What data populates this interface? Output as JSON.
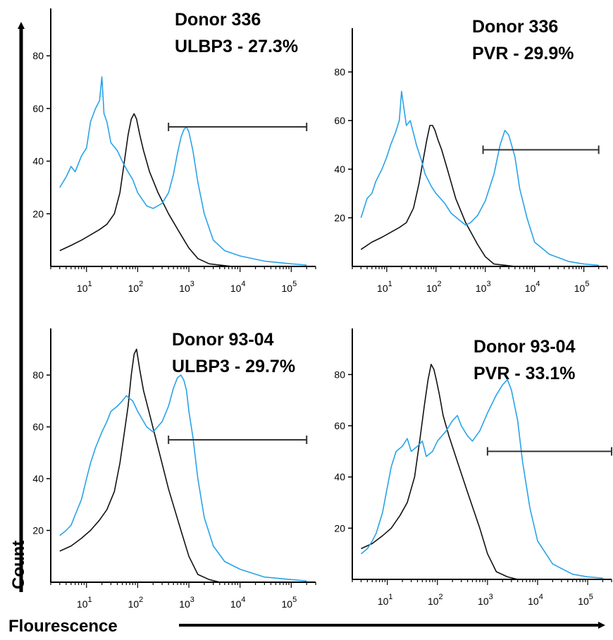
{
  "figure": {
    "y_axis_label": "Count",
    "x_axis_label": "Flourescence"
  },
  "colors": {
    "negative": "#111111",
    "positive": "#29a3e8",
    "axis": "#000000"
  },
  "chart_data": [
    {
      "type": "line",
      "annotation_lines": [
        "Donor 336",
        "ULBP3 - 27.3%"
      ],
      "xscale": "log",
      "xlim": [
        2,
        300000
      ],
      "ylim": [
        0,
        98
      ],
      "yticks": [
        20,
        40,
        60,
        80
      ],
      "xticks": [
        {
          "base": "10",
          "exp": "1",
          "value": 10
        },
        {
          "base": "10",
          "exp": "2",
          "value": 100
        },
        {
          "base": "10",
          "exp": "3",
          "value": 1000
        },
        {
          "base": "10",
          "exp": "4",
          "value": 10000
        },
        {
          "base": "10",
          "exp": "5",
          "value": 100000
        }
      ],
      "gate": {
        "x_start": 400,
        "x_end": 200000,
        "y": 53
      },
      "series": [
        {
          "role": "negative",
          "x": [
            3,
            5,
            8,
            12,
            18,
            25,
            35,
            45,
            55,
            65,
            75,
            85,
            95,
            110,
            130,
            170,
            250,
            400,
            700,
            1000,
            1500,
            2500,
            4000,
            7000
          ],
          "y": [
            6,
            8,
            10,
            12,
            14,
            16,
            20,
            28,
            40,
            50,
            56,
            58,
            56,
            50,
            44,
            36,
            28,
            20,
            12,
            7,
            3,
            1,
            0.5,
            0
          ]
        },
        {
          "role": "positive",
          "x": [
            3,
            4,
            5,
            6,
            8,
            10,
            12,
            15,
            18,
            20,
            22,
            25,
            30,
            40,
            50,
            60,
            80,
            100,
            150,
            200,
            300,
            400,
            500,
            600,
            700,
            800,
            900,
            1000,
            1200,
            1500,
            2000,
            3000,
            5000,
            10000,
            30000,
            100000,
            200000
          ],
          "y": [
            30,
            34,
            38,
            36,
            42,
            45,
            55,
            60,
            63,
            72,
            58,
            55,
            47,
            44,
            40,
            37,
            33,
            28,
            23,
            22,
            24,
            28,
            35,
            43,
            49,
            52,
            53,
            51,
            44,
            32,
            20,
            10,
            6,
            4,
            2,
            1,
            0.5
          ]
        }
      ]
    },
    {
      "type": "line",
      "annotation_lines": [
        "Donor 336",
        "PVR - 29.9%"
      ],
      "xscale": "log",
      "xlim": [
        2,
        300000
      ],
      "ylim": [
        0,
        98
      ],
      "yticks": [
        20,
        40,
        60,
        80
      ],
      "xticks": [
        {
          "base": "10",
          "exp": "1",
          "value": 10
        },
        {
          "base": "10",
          "exp": "2",
          "value": 100
        },
        {
          "base": "10",
          "exp": "3",
          "value": 1000
        },
        {
          "base": "10",
          "exp": "4",
          "value": 10000
        },
        {
          "base": "10",
          "exp": "5",
          "value": 100000
        }
      ],
      "gate": {
        "x_start": 900,
        "x_end": 200000,
        "y": 48
      },
      "series": [
        {
          "role": "negative",
          "x": [
            3,
            5,
            8,
            12,
            18,
            25,
            35,
            45,
            55,
            65,
            75,
            85,
            95,
            110,
            130,
            170,
            250,
            400,
            700,
            1000,
            1500,
            2500,
            4000
          ],
          "y": [
            7,
            10,
            12,
            14,
            16,
            18,
            24,
            34,
            44,
            52,
            58,
            58,
            56,
            52,
            48,
            40,
            28,
            18,
            9,
            4,
            1,
            0.5,
            0
          ]
        },
        {
          "role": "positive",
          "x": [
            3,
            4,
            5,
            6,
            8,
            10,
            12,
            15,
            18,
            20,
            25,
            30,
            40,
            50,
            60,
            80,
            100,
            150,
            200,
            300,
            400,
            500,
            700,
            1000,
            1500,
            2000,
            2500,
            3000,
            4000,
            5000,
            7000,
            10000,
            20000,
            50000,
            100000,
            200000
          ],
          "y": [
            20,
            28,
            30,
            35,
            40,
            45,
            50,
            55,
            60,
            72,
            58,
            60,
            50,
            44,
            38,
            33,
            30,
            26,
            22,
            19,
            17,
            18,
            21,
            27,
            38,
            50,
            56,
            54,
            45,
            32,
            20,
            10,
            5,
            2,
            1,
            0.5
          ]
        }
      ]
    },
    {
      "type": "line",
      "annotation_lines": [
        "Donor 93-04",
        "ULBP3 - 29.7%"
      ],
      "xscale": "log",
      "xlim": [
        2,
        300000
      ],
      "ylim": [
        0,
        98
      ],
      "yticks": [
        20,
        40,
        60,
        80
      ],
      "xticks": [
        {
          "base": "10",
          "exp": "1",
          "value": 10
        },
        {
          "base": "10",
          "exp": "2",
          "value": 100
        },
        {
          "base": "10",
          "exp": "3",
          "value": 1000
        },
        {
          "base": "10",
          "exp": "4",
          "value": 10000
        },
        {
          "base": "10",
          "exp": "5",
          "value": 100000
        }
      ],
      "gate": {
        "x_start": 400,
        "x_end": 200000,
        "y": 55
      },
      "series": [
        {
          "role": "negative",
          "x": [
            3,
            5,
            8,
            12,
            18,
            25,
            35,
            45,
            55,
            65,
            75,
            85,
            95,
            110,
            130,
            170,
            250,
            400,
            700,
            1000,
            1500,
            2500,
            4000
          ],
          "y": [
            12,
            14,
            17,
            20,
            24,
            28,
            35,
            46,
            58,
            68,
            80,
            88,
            90,
            82,
            74,
            65,
            52,
            36,
            20,
            10,
            3,
            1,
            0
          ]
        },
        {
          "role": "positive",
          "x": [
            3,
            4,
            5,
            6,
            8,
            10,
            12,
            15,
            20,
            25,
            30,
            40,
            50,
            60,
            80,
            100,
            150,
            200,
            300,
            400,
            500,
            600,
            700,
            800,
            900,
            1000,
            1200,
            1500,
            2000,
            3000,
            5000,
            10000,
            30000,
            100000,
            200000
          ],
          "y": [
            18,
            20,
            22,
            26,
            32,
            40,
            46,
            52,
            58,
            62,
            66,
            68,
            70,
            72,
            70,
            66,
            60,
            58,
            62,
            68,
            75,
            79,
            80,
            78,
            74,
            66,
            56,
            40,
            25,
            14,
            8,
            5,
            2,
            1,
            0.5
          ]
        }
      ]
    },
    {
      "type": "line",
      "annotation_lines": [
        "Donor 93-04",
        "PVR - 33.1%"
      ],
      "xscale": "log",
      "xlim": [
        2,
        300000
      ],
      "ylim": [
        0,
        98
      ],
      "yticks": [
        20,
        40,
        60,
        80
      ],
      "xticks": [
        {
          "base": "10",
          "exp": "1",
          "value": 10
        },
        {
          "base": "10",
          "exp": "2",
          "value": 100
        },
        {
          "base": "10",
          "exp": "3",
          "value": 1000
        },
        {
          "base": "10",
          "exp": "4",
          "value": 10000
        },
        {
          "base": "10",
          "exp": "5",
          "value": 100000
        }
      ],
      "gate": {
        "x_start": 1000,
        "x_end": 300000,
        "y": 50
      },
      "series": [
        {
          "role": "negative",
          "x": [
            3,
            5,
            8,
            12,
            18,
            25,
            35,
            45,
            55,
            65,
            75,
            85,
            95,
            110,
            130,
            170,
            250,
            400,
            700,
            1000,
            1500,
            2500,
            4000
          ],
          "y": [
            12,
            14,
            17,
            20,
            25,
            30,
            40,
            55,
            68,
            78,
            84,
            82,
            78,
            72,
            64,
            56,
            46,
            34,
            20,
            10,
            3,
            1,
            0
          ]
        },
        {
          "role": "positive",
          "x": [
            3,
            4,
            5,
            6,
            8,
            10,
            12,
            15,
            20,
            25,
            30,
            40,
            50,
            60,
            80,
            100,
            150,
            200,
            250,
            300,
            400,
            500,
            700,
            1000,
            1500,
            2000,
            2500,
            3000,
            4000,
            5000,
            7000,
            10000,
            20000,
            50000,
            100000,
            200000
          ],
          "y": [
            10,
            12,
            15,
            18,
            26,
            36,
            44,
            50,
            52,
            55,
            50,
            52,
            54,
            48,
            50,
            54,
            58,
            62,
            64,
            60,
            56,
            54,
            58,
            65,
            72,
            76,
            78,
            74,
            62,
            46,
            28,
            15,
            6,
            2,
            1,
            0.5
          ]
        }
      ]
    }
  ]
}
